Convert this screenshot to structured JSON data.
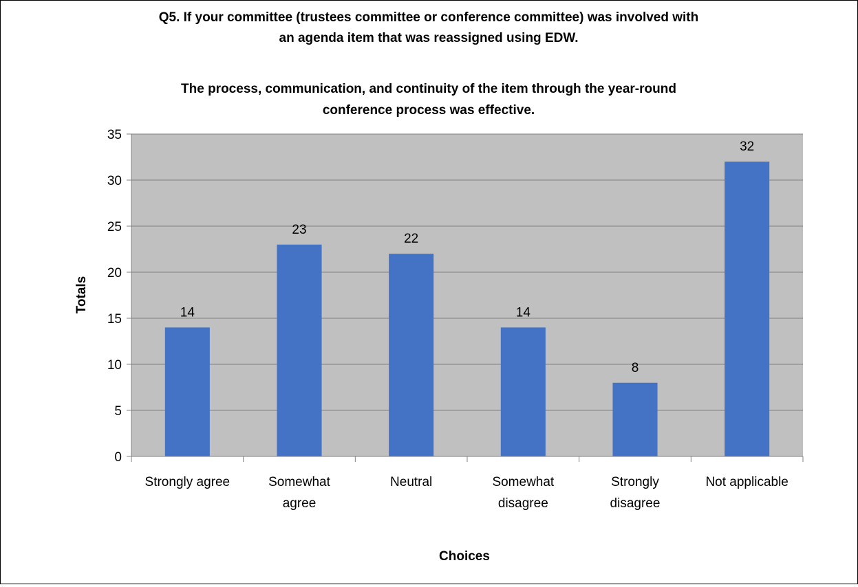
{
  "chart_data": {
    "type": "bar",
    "title": [
      "Q5. If your committee (trustees committee or conference committee) was involved with",
      "an agenda item that was reassigned using EDW.",
      "",
      "The process, communication, and continuity of the item through the year-round",
      "conference process was effective."
    ],
    "xlabel": "Choices",
    "ylabel": "Totals",
    "categories": [
      [
        "Strongly agree"
      ],
      [
        "Somewhat",
        "agree"
      ],
      [
        "Neutral"
      ],
      [
        "Somewhat",
        "disagree"
      ],
      [
        "Strongly",
        "disagree"
      ],
      [
        "Not applicable"
      ]
    ],
    "values": [
      14,
      23,
      22,
      14,
      8,
      32
    ],
    "ylim": [
      0,
      35
    ],
    "yticks": [
      0,
      5,
      10,
      15,
      20,
      25,
      30,
      35
    ],
    "grid": true,
    "legend": "none",
    "colors": {
      "bar": "#4472C4",
      "plot_background": "#C0C0C0",
      "gridline": "#808080"
    }
  }
}
